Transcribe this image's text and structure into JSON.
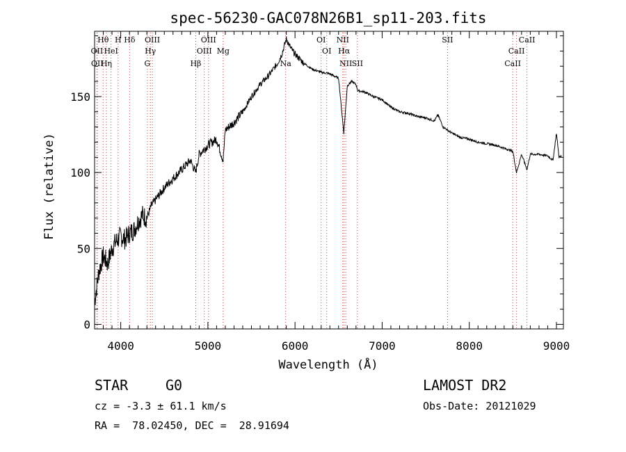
{
  "chart_data": {
    "type": "line",
    "title": "spec-56230-GAC078N26B1_sp11-203.fits",
    "xlabel": "Wavelength (Å)",
    "ylabel": "Flux (relative)",
    "xlim": [
      3700,
      9080
    ],
    "ylim": [
      -3,
      193
    ],
    "x_ticks": [
      4000,
      5000,
      6000,
      7000,
      8000,
      9000
    ],
    "y_ticks": [
      0,
      50,
      100,
      150
    ],
    "grid": false,
    "line_color": "#000000",
    "marker_color": "#cc3333",
    "series": [
      {
        "x": [
          3700,
          3750,
          3800,
          3850,
          3900,
          3950,
          4000,
          4050,
          4100,
          4150,
          4200,
          4250,
          4300,
          4350,
          4400,
          4500,
          4600,
          4700,
          4800,
          4860,
          4900,
          5000,
          5100,
          5175,
          5200,
          5300,
          5400,
          5500,
          5600,
          5700,
          5800,
          5850,
          5900,
          5950,
          6000,
          6050,
          6100,
          6200,
          6300,
          6400,
          6500,
          6560,
          6600,
          6650,
          6700,
          6720,
          6800,
          6900,
          7000,
          7100,
          7200,
          7300,
          7400,
          7500,
          7600,
          7640,
          7700,
          7800,
          7900,
          8000,
          8100,
          8200,
          8300,
          8400,
          8500,
          8542,
          8600,
          8662,
          8700,
          8800,
          8900,
          8960,
          9000,
          9030,
          9060
        ],
        "y": [
          15,
          35,
          45,
          40,
          50,
          55,
          58,
          56,
          60,
          62,
          68,
          72,
          70,
          78,
          82,
          90,
          96,
          102,
          108,
          100,
          112,
          118,
          122,
          108,
          128,
          133,
          140,
          150,
          158,
          164,
          172,
          178,
          188,
          182,
          178,
          175,
          172,
          168,
          166,
          165,
          162,
          126,
          157,
          160,
          158,
          154,
          153,
          150,
          148,
          143,
          140,
          139,
          137,
          136,
          134,
          138,
          130,
          126,
          123,
          122,
          120,
          119,
          118,
          116,
          114,
          100,
          112,
          102,
          112,
          112,
          111,
          108,
          126,
          110,
          111
        ]
      }
    ],
    "lines": [
      {
        "label": "Hθ",
        "x": 3798
      },
      {
        "label": "OII",
        "x": 3727
      },
      {
        "label": "OII",
        "x": 3730
      },
      {
        "label": "H",
        "x": 3970
      },
      {
        "label": "HeI",
        "x": 3889
      },
      {
        "label": "Hη",
        "x": 3835
      },
      {
        "label": "Hδ",
        "x": 4102
      },
      {
        "label": "Hγ",
        "x": 4340
      },
      {
        "label": "G",
        "x": 4305
      },
      {
        "label": "OIII",
        "x": 4363
      },
      {
        "label": "OIII",
        "x": 4959
      },
      {
        "label": "Hβ",
        "x": 4861
      },
      {
        "label": "OIII",
        "x": 5007
      },
      {
        "label": "Mg",
        "x": 5175
      },
      {
        "label": "Na",
        "x": 5893
      },
      {
        "label": "NII",
        "x": 6548
      },
      {
        "label": "OI",
        "x": 6364
      },
      {
        "label": "NII",
        "x": 6583
      },
      {
        "label": "OI",
        "x": 6300
      },
      {
        "label": "Hα",
        "x": 6563
      },
      {
        "label": "SII",
        "x": 6716
      },
      {
        "label": "SII",
        "x": 7750
      },
      {
        "label": "CaII",
        "x": 8542
      },
      {
        "label": "CaII",
        "x": 8498
      },
      {
        "label": "CaII",
        "x": 8662
      }
    ]
  },
  "info": {
    "object_class": "STAR",
    "subclass": "G0",
    "survey": "LAMOST DR2",
    "cz": "cz = -3.3 ± 61.1 km/s",
    "obs_date": "Obs-Date: 20121029",
    "coords": "RA =  78.02450, DEC =  28.91694"
  }
}
